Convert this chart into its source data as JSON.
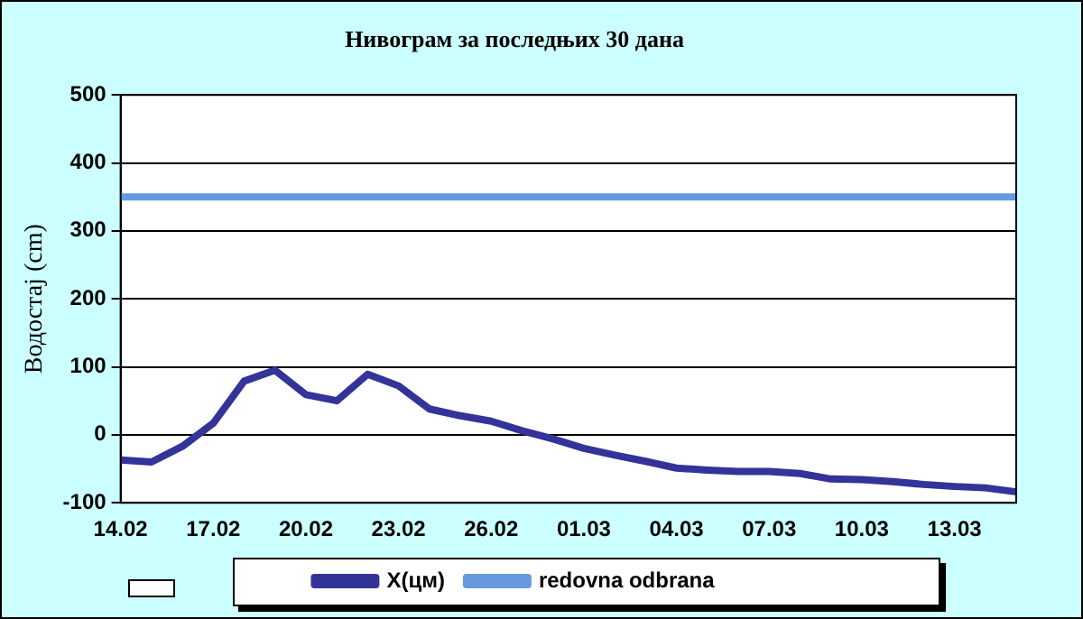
{
  "chart_data": {
    "type": "line",
    "title": "Нивограм за последњих 30 дана",
    "ylabel": "Водостај (cm)",
    "categories": [
      "14.02",
      null,
      null,
      "17.02",
      null,
      null,
      "20.02",
      null,
      null,
      "23.02",
      null,
      null,
      "26.02",
      null,
      null,
      "01.03",
      null,
      null,
      "04.03",
      null,
      null,
      "07.03",
      null,
      null,
      "10.03",
      null,
      null,
      "13.03",
      null,
      null
    ],
    "series": [
      {
        "name": "X(цм)",
        "color": "#333399",
        "values": [
          -37,
          -40,
          -17,
          17,
          79,
          95,
          59,
          50,
          89,
          72,
          38,
          28,
          20,
          6,
          -6,
          -20,
          -30,
          -39,
          -49,
          -52,
          -54,
          -54,
          -57,
          -65,
          -66,
          -69,
          -73,
          -76,
          -78,
          -84
        ]
      },
      {
        "name": "redovna odbrana",
        "color": "#6699dd",
        "values": [
          350,
          350,
          350,
          350,
          350,
          350,
          350,
          350,
          350,
          350,
          350,
          350,
          350,
          350,
          350,
          350,
          350,
          350,
          350,
          350,
          350,
          350,
          350,
          350,
          350,
          350,
          350,
          350,
          350,
          350
        ]
      }
    ],
    "ylim": [
      -100,
      500
    ],
    "yticks": [
      -100,
      0,
      100,
      200,
      300,
      400,
      500
    ],
    "grid": "y",
    "legend": "bottom",
    "marker": "none",
    "line_style": "solid"
  }
}
